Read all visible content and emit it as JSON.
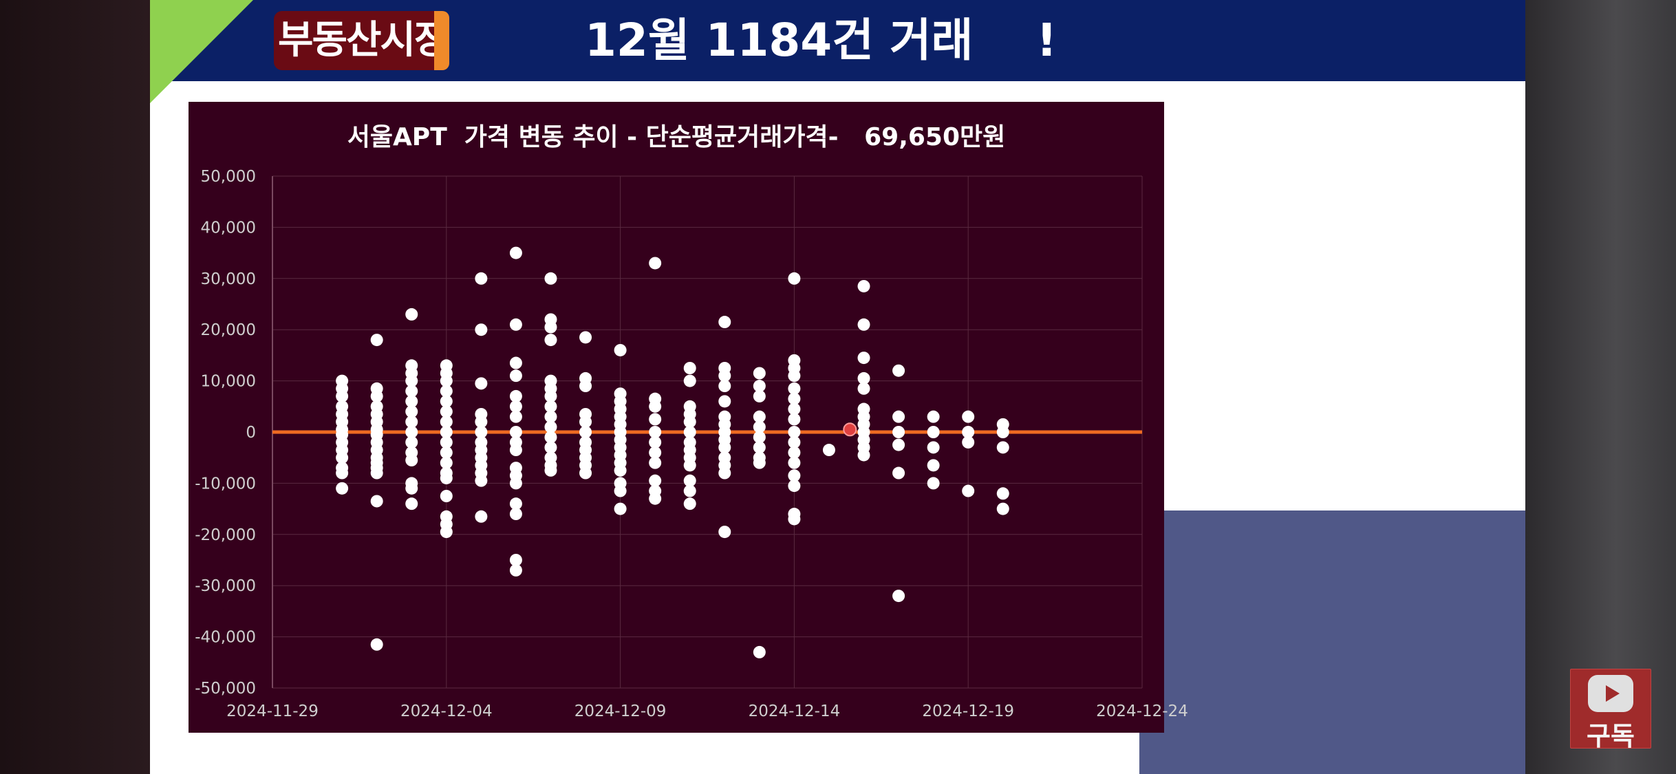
{
  "banner": {
    "tag": "부동산시장",
    "headline": "12월 1184건 거래    !"
  },
  "subscribe": {
    "label": "구독",
    "icon": "play-icon"
  },
  "colors": {
    "banner_bg": "#0b2066",
    "chart_bg": "#35001c",
    "zero_line": "#ee6a22",
    "points": "#ffffff",
    "accent": "#f08a2a"
  },
  "chart_data": {
    "type": "scatter",
    "title": "서울APT  가격 변동 추이 - 단순평균거래가격-   69,650만원",
    "xlabel": "",
    "ylabel": "",
    "x_ticks": [
      "2024-11-29",
      "2024-12-04",
      "2024-12-09",
      "2024-12-14",
      "2024-12-19",
      "2024-12-24"
    ],
    "xlim": [
      "2024-11-29",
      "2024-12-24"
    ],
    "y_ticks": [
      "50,000",
      "40,000",
      "30,000",
      "20,000",
      "10,000",
      "0",
      "-10,000",
      "-20,000",
      "-30,000",
      "-40,000",
      "-50,000"
    ],
    "ylim": [
      -50000,
      50000
    ],
    "grid": true,
    "reference_line": {
      "y": 0,
      "color": "#ee6a22"
    },
    "highlight_point": {
      "x": "2024-12-15",
      "y": 500
    },
    "points": [
      {
        "x": "2024-12-01",
        "y": [
          10000,
          8500,
          7000,
          5000,
          3500,
          2000,
          500,
          -500,
          -2000,
          -3500,
          -5000,
          -7000,
          -8000,
          -11000
        ]
      },
      {
        "x": "2024-12-02",
        "y": [
          18000,
          8500,
          7000,
          5000,
          3500,
          2000,
          500,
          -500,
          -2000,
          -3500,
          -5000,
          -6000,
          -7000,
          -8000,
          -13500,
          -41500
        ]
      },
      {
        "x": "2024-12-03",
        "y": [
          23000,
          13000,
          11500,
          10000,
          8000,
          6000,
          4000,
          2000,
          0,
          -2000,
          -4000,
          -5500,
          -10000,
          -11000,
          -14000
        ]
      },
      {
        "x": "2024-12-04",
        "y": [
          13000,
          11500,
          10000,
          8000,
          6000,
          4000,
          2000,
          0,
          -2000,
          -4000,
          -6000,
          -8000,
          -9000,
          -12500,
          -16500,
          -18000,
          -19500
        ]
      },
      {
        "x": "2024-12-05",
        "y": [
          30000,
          20000,
          9500,
          3500,
          2000,
          0,
          -2000,
          -3500,
          -5000,
          -6500,
          -8000,
          -9500,
          -16500
        ]
      },
      {
        "x": "2024-12-06",
        "y": [
          35000,
          21000,
          13500,
          11000,
          7000,
          5000,
          3000,
          0,
          -2000,
          -3500,
          -7000,
          -8500,
          -10000,
          -14000,
          -16000,
          -25000,
          -27000
        ]
      },
      {
        "x": "2024-12-07",
        "y": [
          30000,
          22000,
          20500,
          18000,
          10000,
          8500,
          7000,
          5000,
          3000,
          1000,
          -1000,
          -3000,
          -5000,
          -6500,
          -7500
        ]
      },
      {
        "x": "2024-12-08",
        "y": [
          18500,
          10500,
          9000,
          3500,
          2000,
          0,
          -2000,
          -3500,
          -5000,
          -6500,
          -8000
        ]
      },
      {
        "x": "2024-12-09",
        "y": [
          16000,
          7500,
          6000,
          4500,
          3000,
          1500,
          0,
          -1500,
          -3000,
          -4500,
          -6000,
          -7500,
          -10000,
          -11500,
          -15000
        ]
      },
      {
        "x": "2024-12-10",
        "y": [
          33000,
          6500,
          5000,
          2500,
          0,
          -2000,
          -4000,
          -6000,
          -9500,
          -11500,
          -13000
        ]
      },
      {
        "x": "2024-12-11",
        "y": [
          12500,
          10000,
          5000,
          3500,
          2000,
          0,
          -2000,
          -3500,
          -5000,
          -6500,
          -9500,
          -11500,
          -14000
        ]
      },
      {
        "x": "2024-12-12",
        "y": [
          21500,
          12500,
          11000,
          9000,
          6000,
          3000,
          1500,
          0,
          -1500,
          -3000,
          -5000,
          -6500,
          -8000,
          -19500
        ]
      },
      {
        "x": "2024-12-13",
        "y": [
          11500,
          9000,
          7000,
          3000,
          1000,
          -1000,
          -3000,
          -5000,
          -6000,
          -43000
        ]
      },
      {
        "x": "2024-12-14",
        "y": [
          30000,
          14000,
          12500,
          11000,
          8500,
          6500,
          4500,
          2500,
          0,
          -2000,
          -4000,
          -6000,
          -8500,
          -10500,
          -16000,
          -17000
        ]
      },
      {
        "x": "2024-12-15",
        "y": [
          -3500
        ]
      },
      {
        "x": "2024-12-16",
        "y": [
          28500,
          21000,
          14500,
          10500,
          8500,
          4500,
          3000,
          1500,
          0,
          -1500,
          -3000,
          -4500
        ]
      },
      {
        "x": "2024-12-17",
        "y": [
          12000,
          3000,
          0,
          -2500,
          -8000,
          -32000
        ]
      },
      {
        "x": "2024-12-18",
        "y": [
          3000,
          0,
          -3000,
          -6500,
          -10000
        ]
      },
      {
        "x": "2024-12-19",
        "y": [
          3000,
          0,
          -2000,
          -11500
        ]
      },
      {
        "x": "2024-12-20",
        "y": [
          1500,
          0,
          -3000,
          -12000,
          -15000
        ]
      }
    ]
  }
}
